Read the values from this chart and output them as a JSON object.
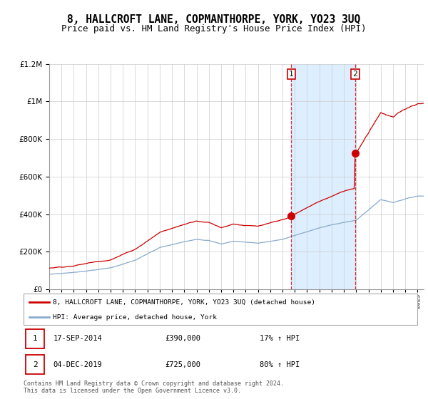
{
  "title": "8, HALLCROFT LANE, COPMANTHORPE, YORK, YO23 3UQ",
  "subtitle": "Price paid vs. HM Land Registry's House Price Index (HPI)",
  "title_fontsize": 10.5,
  "subtitle_fontsize": 9,
  "legend_line1": "8, HALLCROFT LANE, COPMANTHORPE, YORK, YO23 3UQ (detached house)",
  "legend_line2": "HPI: Average price, detached house, York",
  "annotation1_num": "1",
  "annotation1_date": "17-SEP-2014",
  "annotation1_price": "£390,000",
  "annotation1_hpi": "17% ↑ HPI",
  "annotation2_num": "2",
  "annotation2_date": "04-DEC-2019",
  "annotation2_price": "£725,000",
  "annotation2_hpi": "80% ↑ HPI",
  "copyright": "Contains HM Land Registry data © Crown copyright and database right 2024.\nThis data is licensed under the Open Government Licence v3.0.",
  "red_color": "#cc0000",
  "blue_color": "#88aacc",
  "shade_color": "#ddeeff",
  "grid_color": "#cccccc",
  "marker_box_color": "#cc0000",
  "sale1_year": 2014.72,
  "sale2_year": 2019.92,
  "sale1_price": 390000,
  "sale2_price": 725000,
  "ylim_max": 1200000,
  "background": "#ffffff"
}
